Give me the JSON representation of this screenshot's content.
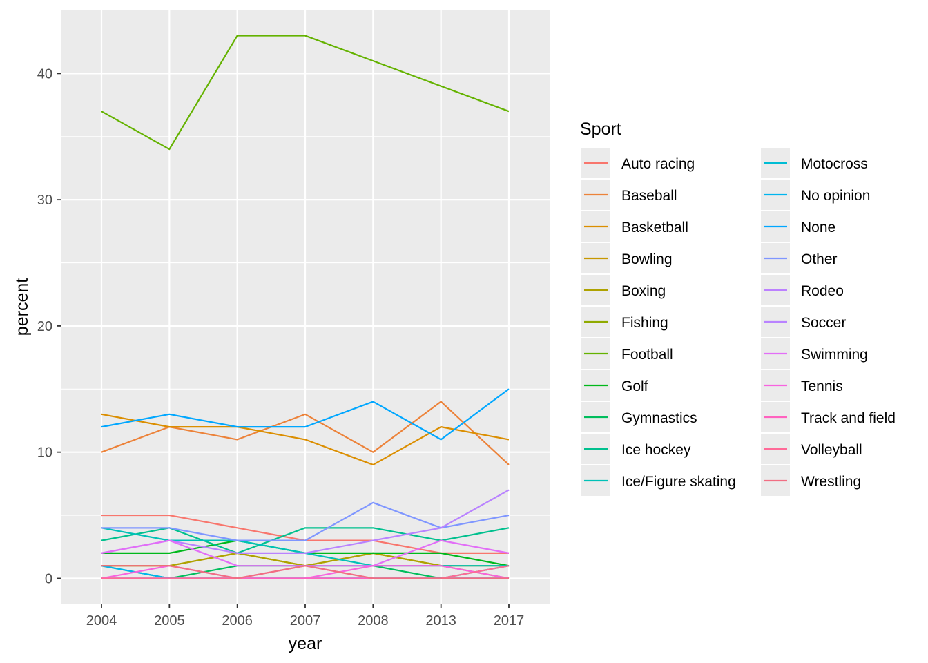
{
  "chart_data": {
    "type": "line",
    "title": "",
    "xlabel": "year",
    "ylabel": "percent",
    "x": [
      "2004",
      "2005",
      "2006",
      "2007",
      "2008",
      "2013",
      "2017"
    ],
    "ylim": [
      -2,
      45
    ],
    "yticks": [
      0,
      10,
      20,
      30,
      40
    ],
    "grid": true,
    "legend": {
      "title": "Sport",
      "placement": "right",
      "columns": 2
    },
    "series": [
      {
        "name": "Auto racing",
        "color": "#F8766D",
        "values": [
          5,
          5,
          4,
          3,
          3,
          2,
          2
        ]
      },
      {
        "name": "Baseball",
        "color": "#EC8239",
        "values": [
          10,
          12,
          11,
          13,
          10,
          14,
          9
        ]
      },
      {
        "name": "Basketball",
        "color": "#DB8E00",
        "values": [
          13,
          12,
          12,
          11,
          9,
          12,
          11
        ]
      },
      {
        "name": "Bowling",
        "color": "#C79800",
        "values": [
          1,
          1,
          2,
          1,
          2,
          1,
          1
        ]
      },
      {
        "name": "Boxing",
        "color": "#AEA200",
        "values": [
          1,
          1,
          2,
          1,
          2,
          1,
          0
        ]
      },
      {
        "name": "Fishing",
        "color": "#8FAA00",
        "values": [
          0,
          0,
          0,
          0,
          0,
          0,
          0
        ]
      },
      {
        "name": "Football",
        "color": "#64B200",
        "values": [
          37,
          34,
          43,
          43,
          41,
          39,
          37
        ]
      },
      {
        "name": "Golf",
        "color": "#00B81B",
        "values": [
          2,
          2,
          3,
          2,
          2,
          2,
          1
        ]
      },
      {
        "name": "Gymnastics",
        "color": "#00BD5C",
        "values": [
          1,
          0,
          1,
          1,
          1,
          0,
          1
        ]
      },
      {
        "name": "Ice hockey",
        "color": "#00C08E",
        "values": [
          3,
          4,
          2,
          4,
          4,
          3,
          4
        ]
      },
      {
        "name": "Ice/Figure skating",
        "color": "#00C1B7",
        "values": [
          4,
          3,
          3,
          2,
          1,
          1,
          1
        ]
      },
      {
        "name": "Motocross",
        "color": "#00BDD4",
        "values": [
          0,
          0,
          0,
          0,
          0,
          0,
          0
        ]
      },
      {
        "name": "No opinion",
        "color": "#00B5EE",
        "values": [
          1,
          0,
          0,
          0,
          0,
          0,
          0
        ]
      },
      {
        "name": "None",
        "color": "#00A7FF",
        "values": [
          12,
          13,
          12,
          12,
          14,
          11,
          15
        ]
      },
      {
        "name": "Other",
        "color": "#7F96FF",
        "values": [
          4,
          4,
          3,
          3,
          6,
          4,
          5
        ]
      },
      {
        "name": "Rodeo",
        "color": "#BC81FF",
        "values": [
          0,
          0,
          0,
          0,
          0,
          0,
          0
        ]
      },
      {
        "name": "Soccer",
        "color": "#B983FF",
        "values": [
          2,
          3,
          2,
          2,
          3,
          4,
          7
        ]
      },
      {
        "name": "Swimming",
        "color": "#E26EF7",
        "values": [
          2,
          3,
          1,
          1,
          1,
          3,
          2
        ]
      },
      {
        "name": "Tennis",
        "color": "#F863DF",
        "values": [
          0,
          1,
          0,
          0,
          1,
          1,
          0
        ]
      },
      {
        "name": "Track and field",
        "color": "#FF62BF",
        "values": [
          0,
          0,
          0,
          0,
          0,
          0,
          0
        ]
      },
      {
        "name": "Volleyball",
        "color": "#FF6A98",
        "values": [
          0,
          0,
          0,
          1,
          0,
          0,
          1
        ]
      },
      {
        "name": "Wrestling",
        "color": "#F16E83",
        "values": [
          1,
          1,
          0,
          1,
          0,
          0,
          0
        ]
      }
    ]
  }
}
